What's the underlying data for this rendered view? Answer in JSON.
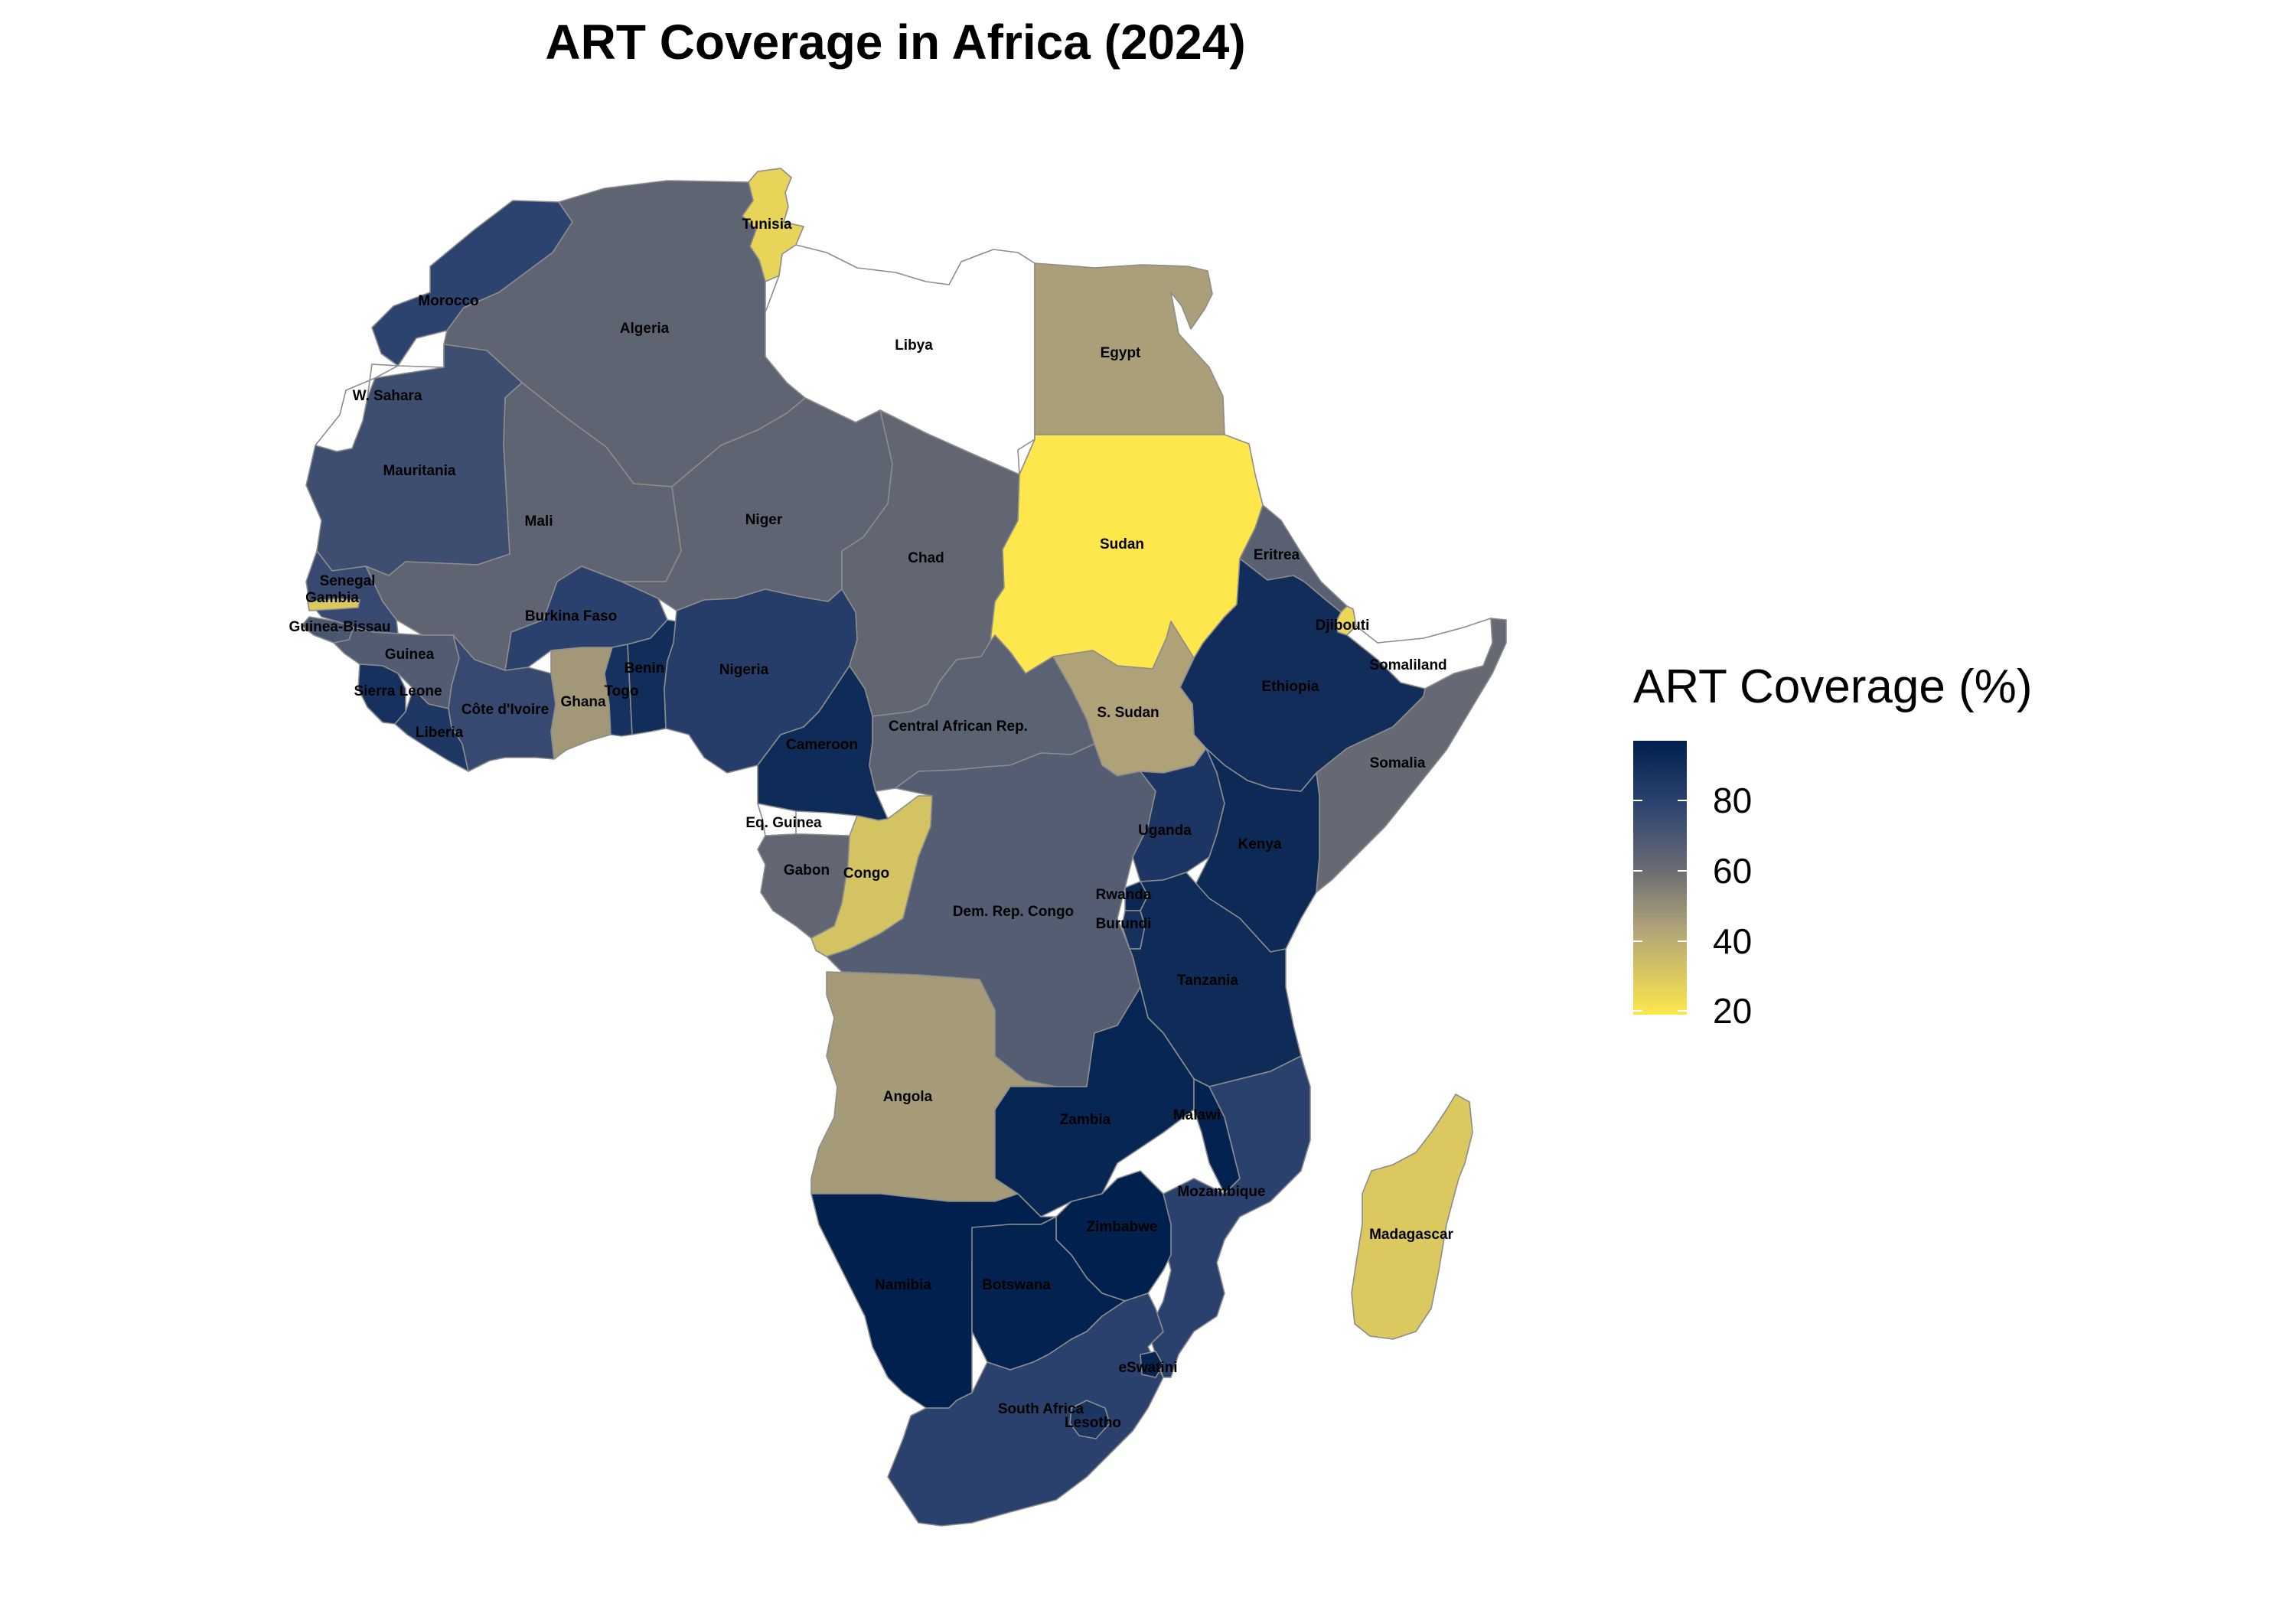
{
  "title": "ART Coverage in Africa (2024)",
  "legend": {
    "title": "ART Coverage (%)",
    "range": [
      19,
      97
    ],
    "ticks": [
      20,
      40,
      60,
      80
    ],
    "tick_labels": [
      "20",
      "40",
      "60",
      "80"
    ]
  },
  "colors": {
    "no_data": "#ffffff",
    "border": "#8c8c8c",
    "scale_low": "#FDE74C",
    "scale_mid": "#6D6E73",
    "scale_high": "#00204D"
  },
  "countries": [
    {
      "name": "Tunisia",
      "label": "Tunisia",
      "coverage": 26
    },
    {
      "name": "Morocco",
      "label": "Morocco",
      "coverage": 79
    },
    {
      "name": "Algeria",
      "label": "Algeria",
      "coverage": 64
    },
    {
      "name": "Libya",
      "label": "Libya",
      "coverage": null
    },
    {
      "name": "Egypt",
      "label": "Egypt",
      "coverage": 45
    },
    {
      "name": "W. Sahara",
      "label": "W. Sahara",
      "coverage": null
    },
    {
      "name": "Mauritania",
      "label": "Mauritania",
      "coverage": 74
    },
    {
      "name": "Mali",
      "label": "Mali",
      "coverage": 64
    },
    {
      "name": "Niger",
      "label": "Niger",
      "coverage": 64
    },
    {
      "name": "Chad",
      "label": "Chad",
      "coverage": 63
    },
    {
      "name": "Sudan",
      "label": "Sudan",
      "coverage": 19
    },
    {
      "name": "Eritrea",
      "label": "Eritrea",
      "coverage": 66
    },
    {
      "name": "Djibouti",
      "label": "Djibouti",
      "coverage": 25
    },
    {
      "name": "Somaliland",
      "label": "Somaliland",
      "coverage": null
    },
    {
      "name": "Ethiopia",
      "label": "Ethiopia",
      "coverage": 90
    },
    {
      "name": "Somalia",
      "label": "Somalia",
      "coverage": 62
    },
    {
      "name": "Senegal",
      "label": "Senegal",
      "coverage": 76
    },
    {
      "name": "Gambia",
      "label": "Gambia",
      "coverage": 30
    },
    {
      "name": "Guinea-Bissau",
      "label": "Guinea-Bissau",
      "coverage": 70
    },
    {
      "name": "Guinea",
      "label": "Guinea",
      "coverage": 68
    },
    {
      "name": "Sierra Leone",
      "label": "Sierra Leone",
      "coverage": 88
    },
    {
      "name": "Liberia",
      "label": "Liberia",
      "coverage": 85
    },
    {
      "name": "Côte d'Ivoire",
      "label": "Côte d'Ivoire",
      "coverage": 76
    },
    {
      "name": "Burkina Faso",
      "label": "Burkina Faso",
      "coverage": 80
    },
    {
      "name": "Ghana",
      "label": "Ghana",
      "coverage": 47
    },
    {
      "name": "Togo",
      "label": "Togo",
      "coverage": 88
    },
    {
      "name": "Benin",
      "label": "Benin",
      "coverage": 90
    },
    {
      "name": "Nigeria",
      "label": "Nigeria",
      "coverage": 82
    },
    {
      "name": "Cameroon",
      "label": "Cameroon",
      "coverage": 91
    },
    {
      "name": "Central African Rep.",
      "label": "Central African Rep.",
      "coverage": 65
    },
    {
      "name": "S. Sudan",
      "label": "S. Sudan",
      "coverage": 44
    },
    {
      "name": "Eq. Guinea",
      "label": "Eq. Guinea",
      "coverage": null
    },
    {
      "name": "Gabon",
      "label": "Gabon",
      "coverage": 63
    },
    {
      "name": "Congo",
      "label": "Congo",
      "coverage": 32
    },
    {
      "name": "Dem. Rep. Congo",
      "label": "Dem. Rep. Congo",
      "coverage": 67
    },
    {
      "name": "Uganda",
      "label": "Uganda",
      "coverage": 86
    },
    {
      "name": "Kenya",
      "label": "Kenya",
      "coverage": 92
    },
    {
      "name": "Rwanda",
      "label": "Rwanda",
      "coverage": 93
    },
    {
      "name": "Burundi",
      "label": "Burundi",
      "coverage": 88
    },
    {
      "name": "Tanzania",
      "label": "Tanzania",
      "coverage": 91
    },
    {
      "name": "Angola",
      "label": "Angola",
      "coverage": 46
    },
    {
      "name": "Zambia",
      "label": "Zambia",
      "coverage": 94
    },
    {
      "name": "Malawi",
      "label": "Malawi",
      "coverage": 96
    },
    {
      "name": "Mozambique",
      "label": "Mozambique",
      "coverage": 80
    },
    {
      "name": "Zimbabwe",
      "label": "Zimbabwe",
      "coverage": 97
    },
    {
      "name": "Namibia",
      "label": "Namibia",
      "coverage": 97
    },
    {
      "name": "Botswana",
      "label": "Botswana",
      "coverage": 96
    },
    {
      "name": "South Africa",
      "label": "South Africa",
      "coverage": 80
    },
    {
      "name": "Lesotho",
      "label": "Lesotho",
      "coverage": 86
    },
    {
      "name": "eSwatini",
      "label": "eSwatini",
      "coverage": 95
    },
    {
      "name": "Madagascar",
      "label": "Madagascar",
      "coverage": 30
    }
  ]
}
